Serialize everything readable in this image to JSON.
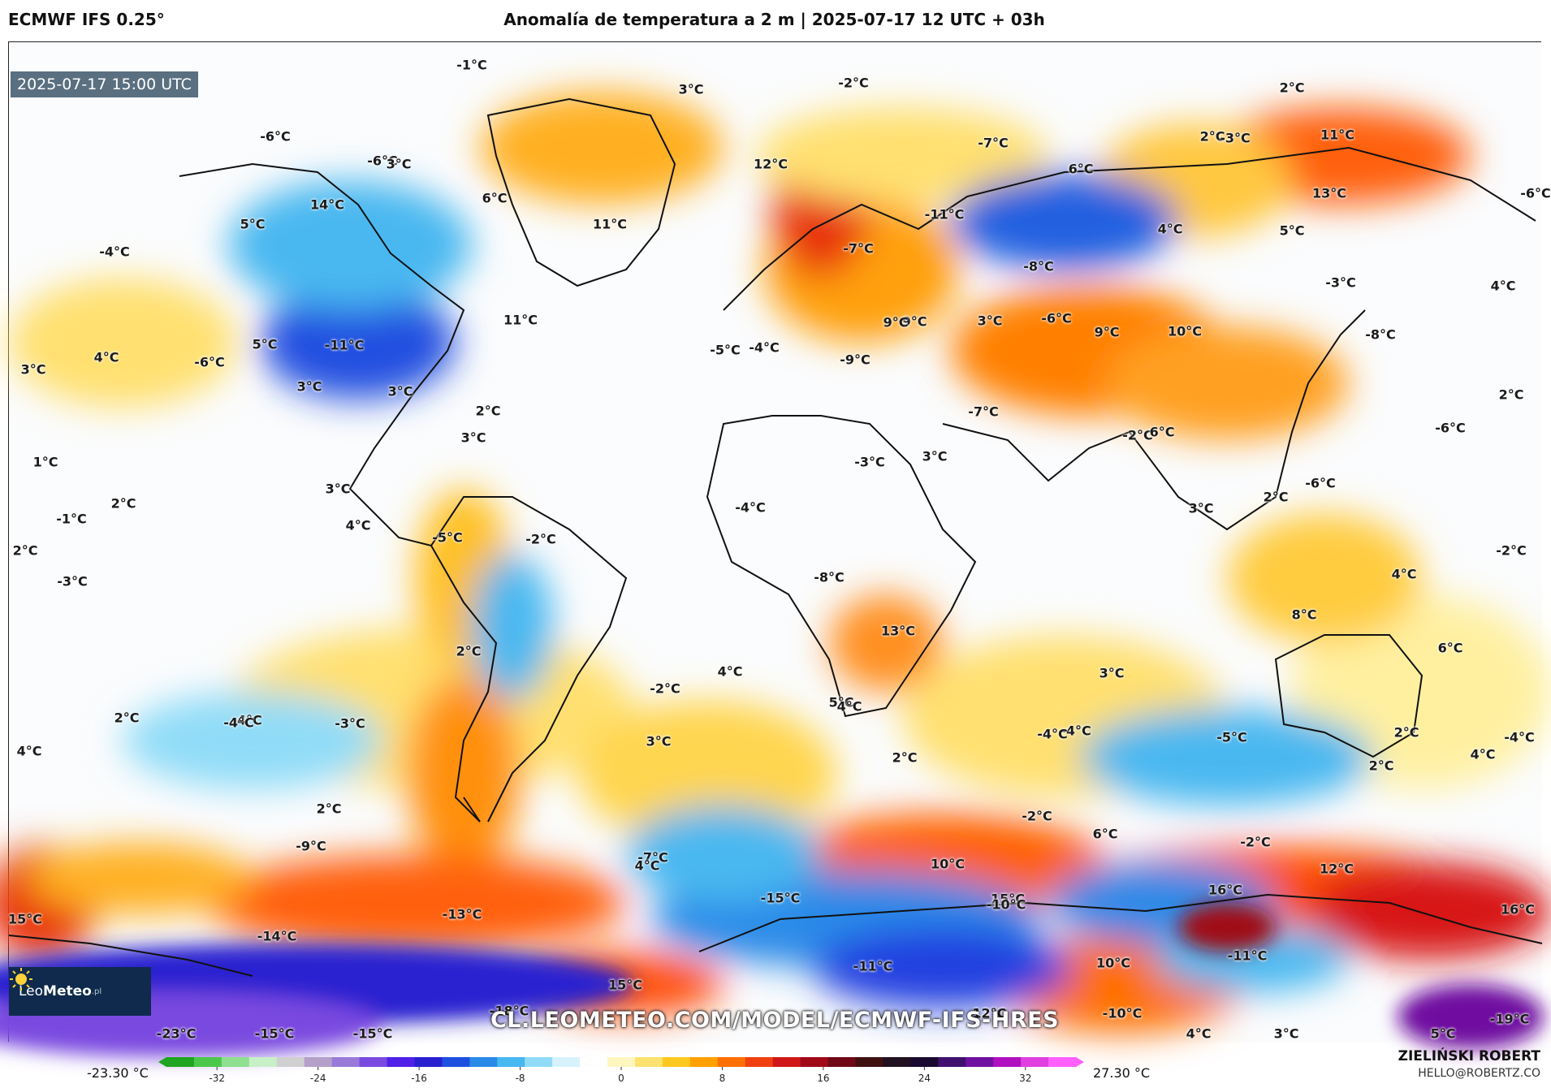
{
  "header": {
    "model": "ECMWF IFS 0.25°",
    "title": "Anomalía de temperatura a 2 m | 2025-07-17 12 UTC + 03h"
  },
  "map": {
    "valid_time": "2025-07-17 15:00 UTC",
    "watermark": "CL.LEOMETEO.COM/MODEL/ECMWF-IFS-HRES",
    "labels": [
      {
        "t": "-1°C"
      },
      {
        "t": "-2°C"
      },
      {
        "t": "2°C"
      },
      {
        "t": "3°C"
      },
      {
        "t": "-6°C"
      },
      {
        "t": "-6°C"
      },
      {
        "t": "3°C"
      },
      {
        "t": "6°C"
      },
      {
        "t": "6°C"
      },
      {
        "t": "14°C"
      },
      {
        "t": "5°C"
      },
      {
        "t": "-4°C"
      },
      {
        "t": "-7°C"
      },
      {
        "t": "11°C"
      },
      {
        "t": "12°C"
      },
      {
        "t": "-11°C"
      },
      {
        "t": "-7°C"
      },
      {
        "t": "2°C"
      },
      {
        "t": "-3°C"
      },
      {
        "t": "11°C"
      },
      {
        "t": "13°C"
      },
      {
        "t": "-6°C"
      },
      {
        "t": "4°C"
      },
      {
        "t": "5°C"
      },
      {
        "t": "-8°C"
      },
      {
        "t": "-3°C"
      },
      {
        "t": "4°C"
      },
      {
        "t": "5°C"
      },
      {
        "t": "-11°C"
      },
      {
        "t": "4°C"
      },
      {
        "t": "3°C"
      },
      {
        "t": "-6°C"
      },
      {
        "t": "11°C"
      },
      {
        "t": "-5°C"
      },
      {
        "t": "-4°C"
      },
      {
        "t": "9°C"
      },
      {
        "t": "9°C"
      },
      {
        "t": "-9°C"
      },
      {
        "t": "-6°C"
      },
      {
        "t": "9°C"
      },
      {
        "t": "10°C"
      },
      {
        "t": "-8°C"
      },
      {
        "t": "3°C"
      },
      {
        "t": "3°C"
      },
      {
        "t": "3°C"
      },
      {
        "t": "2°C"
      },
      {
        "t": "2°C"
      },
      {
        "t": "-6°C"
      },
      {
        "t": "-2°C"
      },
      {
        "t": "3°C"
      },
      {
        "t": "1°C"
      },
      {
        "t": "3°C"
      },
      {
        "t": "-7°C"
      },
      {
        "t": "6°C"
      },
      {
        "t": "-1°C"
      },
      {
        "t": "2°C"
      },
      {
        "t": "3°C"
      },
      {
        "t": "4°C"
      },
      {
        "t": "-2°C"
      },
      {
        "t": "-6°C"
      },
      {
        "t": "-3°C"
      },
      {
        "t": "2°C"
      },
      {
        "t": "-5°C"
      },
      {
        "t": "-4°C"
      },
      {
        "t": "3°C"
      },
      {
        "t": "4°C"
      },
      {
        "t": "2°C"
      },
      {
        "t": "-2°C"
      },
      {
        "t": "-3°C"
      },
      {
        "t": "-8°C"
      },
      {
        "t": "8°C"
      },
      {
        "t": "13°C"
      },
      {
        "t": "5°C"
      },
      {
        "t": "6°C"
      },
      {
        "t": "2°C"
      },
      {
        "t": "2°C"
      },
      {
        "t": "-2°C"
      },
      {
        "t": "4°C"
      },
      {
        "t": "3°C"
      },
      {
        "t": "-4°C"
      },
      {
        "t": "-3°C"
      },
      {
        "t": "-4°C"
      },
      {
        "t": "4°C"
      },
      {
        "t": "-4°C"
      },
      {
        "t": "-4°C"
      },
      {
        "t": "-5°C"
      },
      {
        "t": "2°C"
      },
      {
        "t": "-4°C"
      },
      {
        "t": "2°C"
      },
      {
        "t": "3°C"
      },
      {
        "t": "4°C"
      },
      {
        "t": "4°C"
      },
      {
        "t": "2°C"
      },
      {
        "t": "2°C"
      },
      {
        "t": "-2°C"
      },
      {
        "t": "6°C"
      },
      {
        "t": "-7°C"
      },
      {
        "t": "-2°C"
      },
      {
        "t": "4°C"
      },
      {
        "t": "-9°C"
      },
      {
        "t": "10°C"
      },
      {
        "t": "12°C"
      },
      {
        "t": "15°C"
      },
      {
        "t": "15°C"
      },
      {
        "t": "-13°C"
      },
      {
        "t": "-15°C"
      },
      {
        "t": "-10°C"
      },
      {
        "t": "16°C"
      },
      {
        "t": "16°C"
      },
      {
        "t": "-14°C"
      },
      {
        "t": "10°C"
      },
      {
        "t": "-11°C"
      },
      {
        "t": "-11°C"
      },
      {
        "t": "15°C"
      },
      {
        "t": "-18°C"
      },
      {
        "t": "-12°C"
      },
      {
        "t": "-10°C"
      },
      {
        "t": "-23°C"
      },
      {
        "t": "-15°C"
      },
      {
        "t": "-15°C"
      },
      {
        "t": "4°C"
      },
      {
        "t": "3°C"
      },
      {
        "t": "5°C"
      },
      {
        "t": "-19°C"
      }
    ]
  },
  "logo": {
    "text1": "Leo",
    "text2": "Meteo",
    "suffix": ".pl"
  },
  "colorbar": {
    "min_label": "-23.30 °C",
    "max_label": "27.30 °C",
    "ticks": [
      "-32",
      "-24",
      "-16",
      "-8",
      "0",
      "8",
      "16",
      "24",
      "32"
    ],
    "colors": [
      "#1fa51f",
      "#4bc84b",
      "#8ee08e",
      "#c8f0c8",
      "#d0d0d0",
      "#b4a0c8",
      "#9a7ad8",
      "#7a4ae0",
      "#5020e8",
      "#2a20d0",
      "#1e50e0",
      "#2a8ae8",
      "#48b8f0",
      "#90dcf8",
      "#d8f2fc",
      "#ffffff",
      "#fff6c0",
      "#ffe270",
      "#ffc820",
      "#ffa000",
      "#ff7000",
      "#f04010",
      "#d01818",
      "#a00818",
      "#700818",
      "#401010",
      "#201020",
      "#1a0a30",
      "#401070",
      "#7010a0",
      "#b010c0",
      "#e040e0",
      "#ff60ff"
    ]
  },
  "author": {
    "name": "ZIELIŃSKI ROBERT",
    "site": "HELLO@ROBERTZ.CO"
  }
}
